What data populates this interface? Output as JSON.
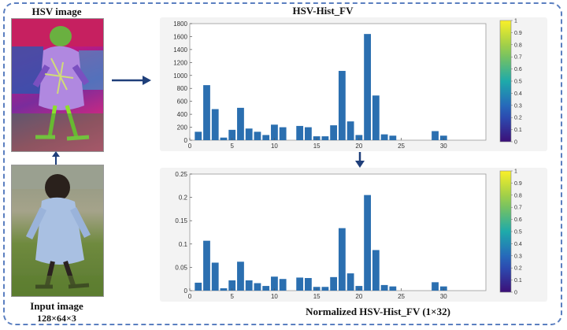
{
  "labels": {
    "hsv_image": "HSV image",
    "input_image": "Input image",
    "input_dims": "128×64×3",
    "top_title": "HSV-Hist_FV",
    "bottom_title": "Normalized HSV-Hist_FV (1×32)"
  },
  "colors": {
    "bar": "#2b6fb0",
    "frame": "#5b7fc0",
    "arrow": "#1f3f7a"
  },
  "chart_data": [
    {
      "type": "bar",
      "title": "HSV-Hist_FV",
      "x": [
        1,
        2,
        3,
        4,
        5,
        6,
        7,
        8,
        9,
        10,
        11,
        12,
        13,
        14,
        15,
        16,
        17,
        18,
        19,
        20,
        21,
        22,
        23,
        24,
        25,
        26,
        27,
        28,
        29,
        30,
        31,
        32
      ],
      "values": [
        130,
        850,
        480,
        40,
        160,
        500,
        180,
        130,
        80,
        240,
        200,
        0,
        220,
        200,
        60,
        60,
        230,
        1070,
        290,
        80,
        1640,
        690,
        90,
        70,
        0,
        0,
        0,
        0,
        140,
        70,
        0,
        0
      ],
      "xlim": [
        0,
        35
      ],
      "ylim": [
        0,
        1800
      ],
      "xticks": [
        0,
        5,
        10,
        15,
        20,
        25,
        30
      ],
      "yticks": [
        0,
        200,
        400,
        600,
        800,
        1000,
        1200,
        1400,
        1600,
        1800
      ],
      "colorbar": {
        "range": [
          0,
          1
        ],
        "ticks": [
          "0",
          "0.1",
          "0.2",
          "0.3",
          "0.4",
          "0.5",
          "0.6",
          "0.7",
          "0.8",
          "0.9",
          "1"
        ]
      }
    },
    {
      "type": "bar",
      "title": "Normalized HSV-Hist_FV (1×32)",
      "x": [
        1,
        2,
        3,
        4,
        5,
        6,
        7,
        8,
        9,
        10,
        11,
        12,
        13,
        14,
        15,
        16,
        17,
        18,
        19,
        20,
        21,
        22,
        23,
        24,
        25,
        26,
        27,
        28,
        29,
        30,
        31,
        32
      ],
      "values": [
        0.017,
        0.107,
        0.06,
        0.005,
        0.022,
        0.062,
        0.022,
        0.016,
        0.01,
        0.03,
        0.025,
        0,
        0.028,
        0.027,
        0.008,
        0.008,
        0.029,
        0.134,
        0.037,
        0.01,
        0.205,
        0.087,
        0.012,
        0.009,
        0,
        0,
        0,
        0,
        0.018,
        0.009,
        0,
        0
      ],
      "xlim": [
        0,
        35
      ],
      "ylim": [
        0,
        0.25
      ],
      "xticks": [
        0,
        5,
        10,
        15,
        20,
        25,
        30
      ],
      "yticks": [
        "0",
        "0.05",
        "0.1",
        "0.15",
        "0.2",
        "0.25"
      ],
      "colorbar": {
        "range": [
          0,
          1
        ],
        "ticks": [
          "0",
          "0.1",
          "0.2",
          "0.3",
          "0.4",
          "0.5",
          "0.6",
          "0.7",
          "0.8",
          "0.9",
          "1"
        ]
      }
    }
  ]
}
